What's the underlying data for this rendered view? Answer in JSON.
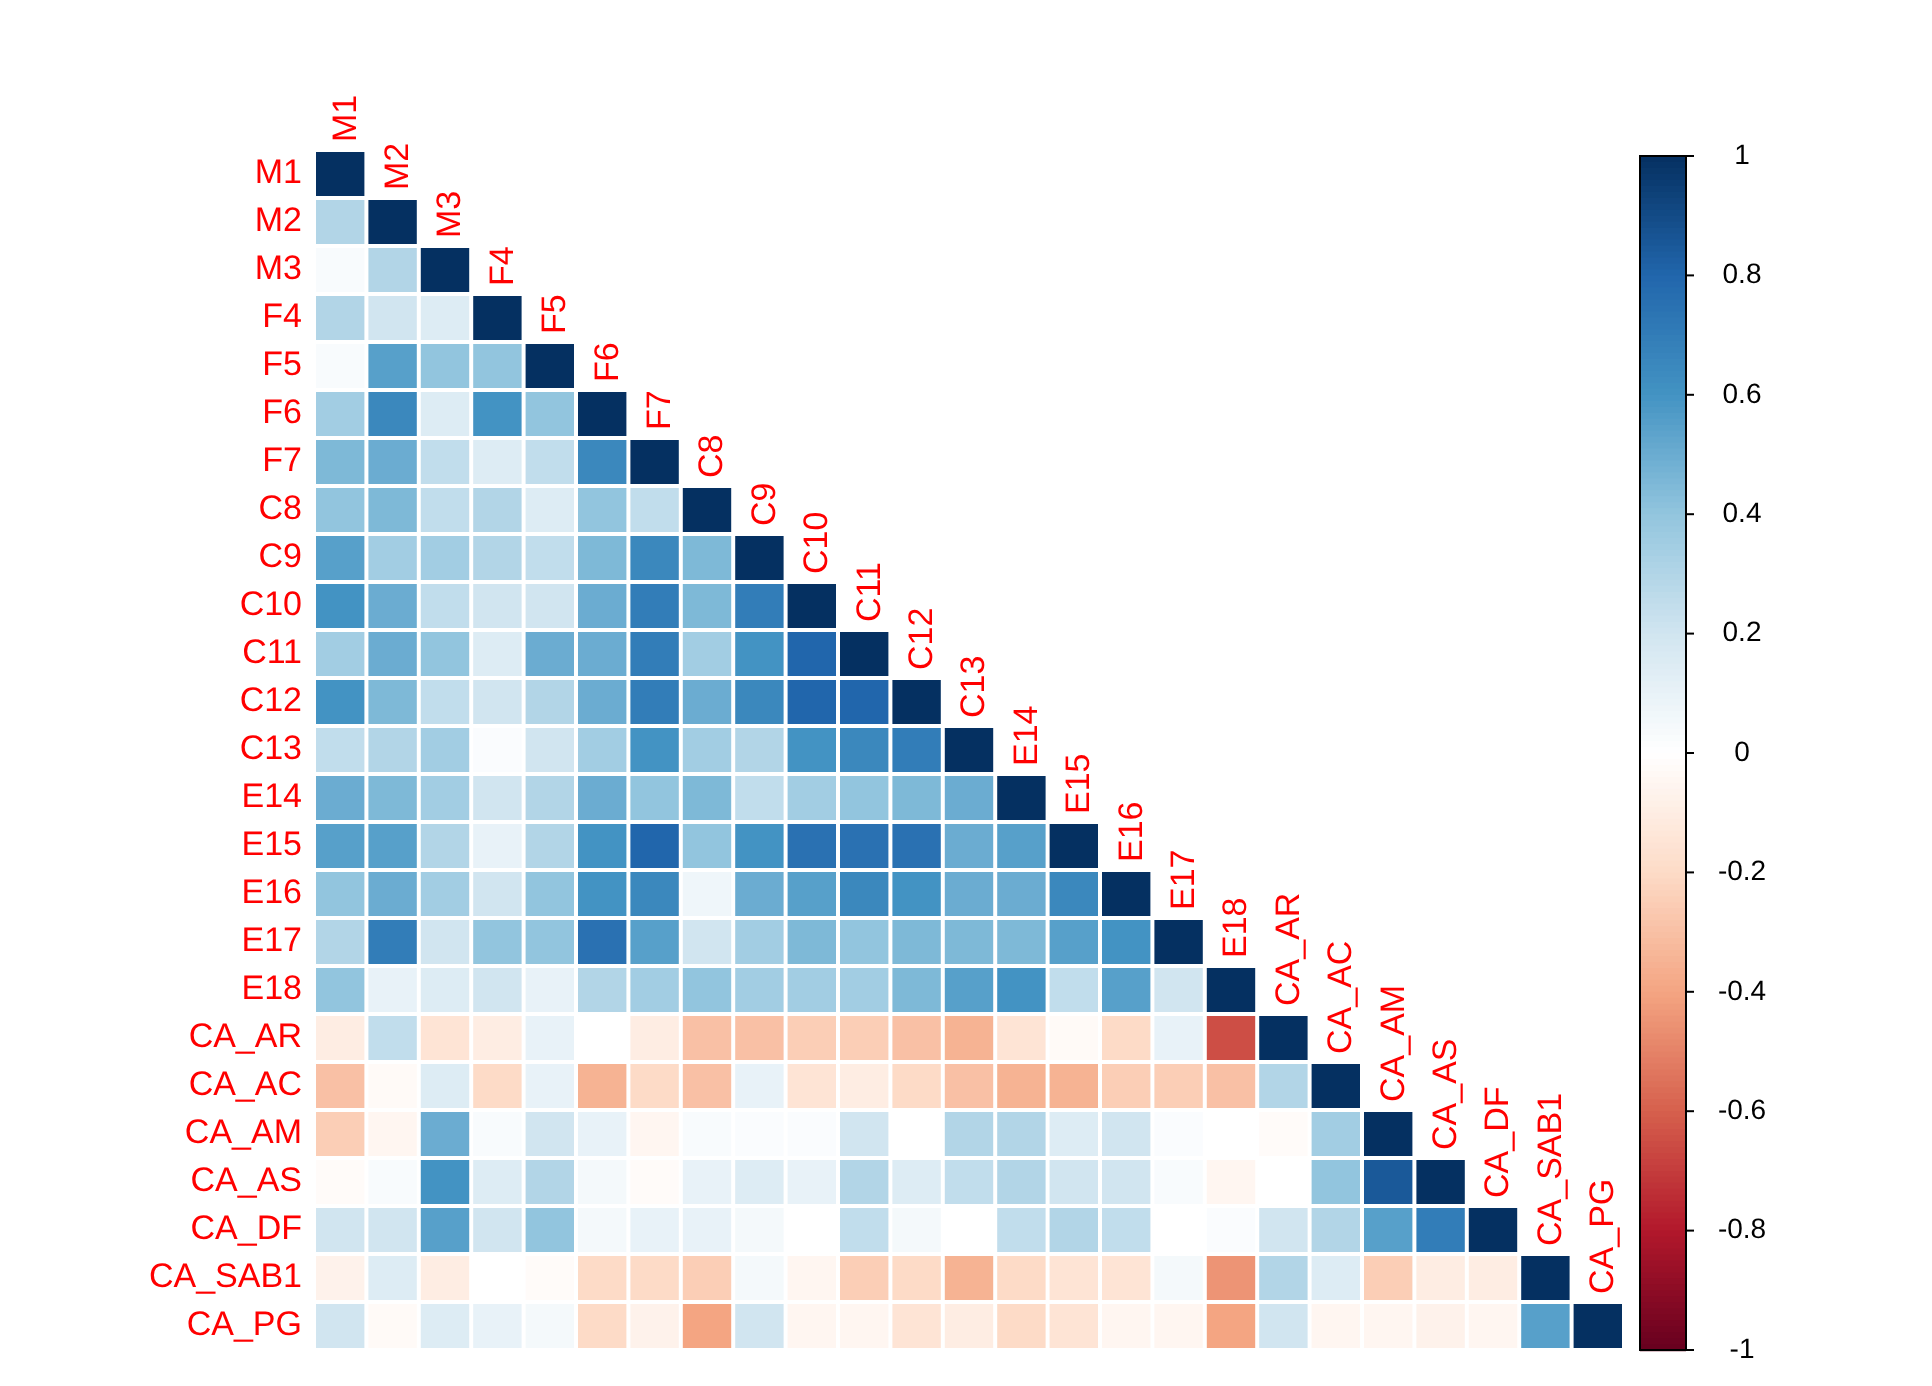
{
  "chart_data": {
    "type": "heatmap",
    "categories": [
      "M1",
      "M2",
      "M3",
      "F4",
      "F5",
      "F6",
      "F7",
      "C8",
      "C9",
      "C10",
      "C11",
      "C12",
      "C13",
      "E14",
      "E15",
      "E16",
      "E17",
      "E18",
      "CA_AR",
      "CA_AC",
      "CA_AM",
      "CA_AS",
      "CA_DF",
      "CA_SAB1",
      "CA_PG"
    ],
    "y_categories": [
      "M1",
      "M2",
      "M3",
      "F4",
      "F5",
      "F6",
      "F7",
      "C8",
      "C9",
      "C10",
      "C11",
      "C12",
      "C13",
      "E14",
      "E15",
      "E16",
      "E17",
      "E18",
      "CA_AR",
      "CA_AC",
      "CA_AM",
      "CA_AS",
      "CA_DF",
      "CA_SAB1",
      "CA_PG"
    ],
    "cells": [
      [
        1,
        null,
        null,
        null,
        null,
        null,
        null,
        null,
        null,
        null,
        null,
        null,
        null,
        null,
        null,
        null,
        null,
        null,
        null,
        null,
        null,
        null,
        null,
        null,
        null
      ],
      [
        0.3,
        1,
        null,
        null,
        null,
        null,
        null,
        null,
        null,
        null,
        null,
        null,
        null,
        null,
        null,
        null,
        null,
        null,
        null,
        null,
        null,
        null,
        null,
        null,
        null
      ],
      [
        0.03,
        0.3,
        1,
        null,
        null,
        null,
        null,
        null,
        null,
        null,
        null,
        null,
        null,
        null,
        null,
        null,
        null,
        null,
        null,
        null,
        null,
        null,
        null,
        null,
        null
      ],
      [
        0.3,
        0.2,
        0.15,
        1,
        null,
        null,
        null,
        null,
        null,
        null,
        null,
        null,
        null,
        null,
        null,
        null,
        null,
        null,
        null,
        null,
        null,
        null,
        null,
        null,
        null
      ],
      [
        0.03,
        0.55,
        0.4,
        0.4,
        1,
        null,
        null,
        null,
        null,
        null,
        null,
        null,
        null,
        null,
        null,
        null,
        null,
        null,
        null,
        null,
        null,
        null,
        null,
        null,
        null
      ],
      [
        0.35,
        0.65,
        0.15,
        0.6,
        0.4,
        1,
        null,
        null,
        null,
        null,
        null,
        null,
        null,
        null,
        null,
        null,
        null,
        null,
        null,
        null,
        null,
        null,
        null,
        null,
        null
      ],
      [
        0.45,
        0.5,
        0.25,
        0.15,
        0.25,
        0.65,
        1,
        null,
        null,
        null,
        null,
        null,
        null,
        null,
        null,
        null,
        null,
        null,
        null,
        null,
        null,
        null,
        null,
        null,
        null
      ],
      [
        0.4,
        0.45,
        0.25,
        0.3,
        0.15,
        0.4,
        0.25,
        1,
        null,
        null,
        null,
        null,
        null,
        null,
        null,
        null,
        null,
        null,
        null,
        null,
        null,
        null,
        null,
        null,
        null
      ],
      [
        0.55,
        0.35,
        0.35,
        0.3,
        0.25,
        0.45,
        0.65,
        0.45,
        1,
        null,
        null,
        null,
        null,
        null,
        null,
        null,
        null,
        null,
        null,
        null,
        null,
        null,
        null,
        null,
        null
      ],
      [
        0.6,
        0.5,
        0.25,
        0.2,
        0.2,
        0.5,
        0.7,
        0.45,
        0.7,
        1,
        null,
        null,
        null,
        null,
        null,
        null,
        null,
        null,
        null,
        null,
        null,
        null,
        null,
        null,
        null
      ],
      [
        0.35,
        0.5,
        0.4,
        0.15,
        0.5,
        0.5,
        0.7,
        0.35,
        0.6,
        0.8,
        1,
        null,
        null,
        null,
        null,
        null,
        null,
        null,
        null,
        null,
        null,
        null,
        null,
        null,
        null
      ],
      [
        0.6,
        0.45,
        0.25,
        0.2,
        0.3,
        0.5,
        0.7,
        0.5,
        0.65,
        0.8,
        0.8,
        1,
        null,
        null,
        null,
        null,
        null,
        null,
        null,
        null,
        null,
        null,
        null,
        null,
        null
      ],
      [
        0.25,
        0.3,
        0.35,
        0.02,
        0.2,
        0.35,
        0.6,
        0.35,
        0.3,
        0.6,
        0.65,
        0.7,
        1,
        null,
        null,
        null,
        null,
        null,
        null,
        null,
        null,
        null,
        null,
        null,
        null
      ],
      [
        0.5,
        0.45,
        0.35,
        0.2,
        0.3,
        0.5,
        0.4,
        0.45,
        0.25,
        0.35,
        0.4,
        0.45,
        0.5,
        1,
        null,
        null,
        null,
        null,
        null,
        null,
        null,
        null,
        null,
        null,
        null
      ],
      [
        0.55,
        0.55,
        0.3,
        0.1,
        0.3,
        0.6,
        0.8,
        0.4,
        0.6,
        0.75,
        0.75,
        0.75,
        0.5,
        0.55,
        1,
        null,
        null,
        null,
        null,
        null,
        null,
        null,
        null,
        null,
        null
      ],
      [
        0.4,
        0.5,
        0.35,
        0.2,
        0.4,
        0.6,
        0.65,
        0.07,
        0.5,
        0.55,
        0.65,
        0.6,
        0.5,
        0.5,
        0.65,
        1,
        null,
        null,
        null,
        null,
        null,
        null,
        null,
        null,
        null
      ],
      [
        0.3,
        0.7,
        0.2,
        0.4,
        0.4,
        0.75,
        0.55,
        0.2,
        0.35,
        0.45,
        0.4,
        0.45,
        0.45,
        0.45,
        0.55,
        0.6,
        1,
        null,
        null,
        null,
        null,
        null,
        null,
        null,
        null
      ],
      [
        0.4,
        0.1,
        0.15,
        0.2,
        0.1,
        0.3,
        0.35,
        0.4,
        0.35,
        0.35,
        0.35,
        0.45,
        0.55,
        0.6,
        0.25,
        0.55,
        0.2,
        1,
        null,
        null,
        null,
        null,
        null,
        null,
        null
      ],
      [
        -0.1,
        0.25,
        -0.15,
        -0.1,
        0.1,
        0,
        -0.1,
        -0.3,
        -0.3,
        -0.25,
        -0.25,
        -0.3,
        -0.35,
        -0.15,
        -0.03,
        -0.2,
        0.1,
        -0.65,
        1,
        null,
        null,
        null,
        null,
        null,
        null
      ],
      [
        -0.3,
        -0.03,
        0.15,
        -0.2,
        0.1,
        -0.35,
        -0.2,
        -0.3,
        0.1,
        -0.15,
        -0.1,
        -0.2,
        -0.3,
        -0.35,
        -0.35,
        -0.25,
        -0.25,
        -0.3,
        0.3,
        1,
        null,
        null,
        null,
        null,
        null
      ],
      [
        -0.25,
        -0.05,
        0.5,
        0.03,
        0.2,
        0.1,
        -0.05,
        0.03,
        0.02,
        0.02,
        0.2,
        0,
        0.3,
        0.3,
        0.15,
        0.2,
        0.02,
        0,
        -0.02,
        0.35,
        1,
        null,
        null,
        null,
        null
      ],
      [
        -0.02,
        0.03,
        0.6,
        0.15,
        0.3,
        0.05,
        -0.02,
        0.1,
        0.15,
        0.1,
        0.3,
        0.15,
        0.25,
        0.3,
        0.2,
        0.2,
        0.03,
        -0.05,
        0,
        0.4,
        0.85,
        1,
        null,
        null,
        null
      ],
      [
        0.2,
        0.2,
        0.55,
        0.2,
        0.4,
        0.05,
        0.1,
        0.1,
        0.05,
        0,
        0.25,
        0.05,
        0,
        0.25,
        0.3,
        0.25,
        0,
        0.02,
        0.2,
        0.3,
        0.55,
        0.7,
        1,
        null,
        null
      ],
      [
        -0.07,
        0.15,
        -0.1,
        0,
        -0.02,
        -0.2,
        -0.2,
        -0.25,
        0.05,
        -0.05,
        -0.25,
        -0.2,
        -0.35,
        -0.2,
        -0.15,
        -0.15,
        0.05,
        -0.45,
        0.3,
        0.15,
        -0.25,
        -0.1,
        -0.1,
        1,
        null
      ],
      [
        0.2,
        -0.03,
        0.15,
        0.1,
        0.05,
        -0.2,
        -0.07,
        -0.4,
        0.2,
        -0.05,
        -0.05,
        -0.15,
        -0.1,
        -0.2,
        -0.15,
        -0.05,
        -0.05,
        -0.4,
        0.2,
        -0.05,
        -0.05,
        -0.07,
        -0.05,
        0.55,
        1
      ]
    ],
    "clim": [
      -1,
      1
    ],
    "cticks": [
      -1,
      -0.8,
      -0.6,
      -0.4,
      -0.2,
      0,
      0.2,
      0.4,
      0.6,
      0.8,
      1
    ]
  }
}
